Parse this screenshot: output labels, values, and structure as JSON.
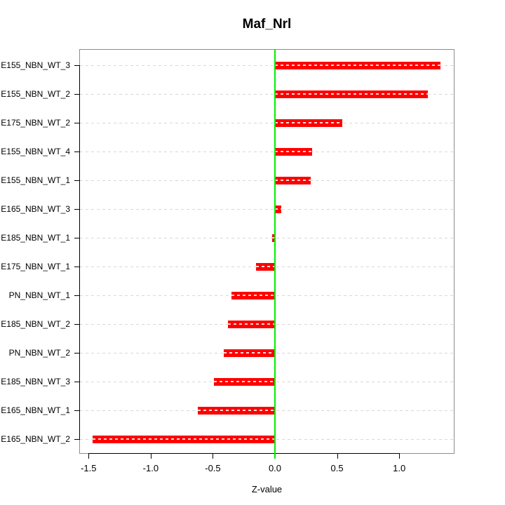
{
  "chart_data": {
    "type": "bar",
    "orientation": "horizontal",
    "title": "Maf_Nrl",
    "xlabel": "Z-value",
    "categories": [
      "E155_NBN_WT_3",
      "E155_NBN_WT_2",
      "E175_NBN_WT_2",
      "E155_NBN_WT_4",
      "E155_NBN_WT_1",
      "E165_NBN_WT_3",
      "E185_NBN_WT_1",
      "E175_NBN_WT_1",
      "PN_NBN_WT_1",
      "E185_NBN_WT_2",
      "PN_NBN_WT_2",
      "E185_NBN_WT_3",
      "E165_NBN_WT_1",
      "E165_NBN_WT_2"
    ],
    "values": [
      1.33,
      1.23,
      0.54,
      0.3,
      0.29,
      0.05,
      -0.02,
      -0.15,
      -0.35,
      -0.38,
      -0.41,
      -0.49,
      -0.62,
      -1.47
    ],
    "xlim": [
      -1.575,
      1.445
    ],
    "xticks": {
      "values": [
        -1.5,
        -1.0,
        -0.5,
        0.0,
        0.5,
        1.0
      ],
      "labels": [
        "-1.5",
        "-1.0",
        "-0.5",
        "0.0",
        "0.5",
        "1.0"
      ]
    },
    "zero_line_at": 0.0,
    "grid": "dashed-horizontal",
    "legend": "none",
    "colors": {
      "bar": "#ff0000",
      "zero_line": "#00ee00",
      "grid": "#d8d8d8",
      "box": "#8c8c8c",
      "axis": "#000000",
      "text": "#000000",
      "background": "#ffffff"
    }
  }
}
